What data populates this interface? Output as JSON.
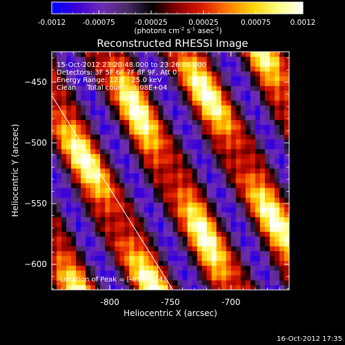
{
  "chart_data": {
    "type": "heatmap",
    "title": "Reconstructed RHESSI Image",
    "xlabel": "Heliocentric X (arcsec)",
    "ylabel": "Heliocentric Y (arcsec)",
    "xlim": [
      -848,
      -652
    ],
    "ylim": [
      -621,
      -425
    ],
    "x_ticks": [
      -800,
      -750,
      -700
    ],
    "x_tick_labels": [
      "-800",
      "-750",
      "-700"
    ],
    "y_ticks": [
      -450,
      -500,
      -550,
      -600
    ],
    "y_tick_labels": [
      "−450",
      "−500",
      "−550",
      "−600"
    ],
    "grid": false,
    "info_lines": [
      "15-Oct-2012 23:20:48.000 to 23:26:06.000",
      "Detectors: 3F 5F 6F 7F 8F 9F, Att 0",
      "Energy Range: 12.0 - 25.0 keV",
      "Clean     Total counts: 1.08E+04"
    ],
    "peak_label": "Location of Peak = [-858,-534]",
    "colorbar": {
      "range": [
        -0.0012,
        0.0012
      ],
      "ticks": [
        -0.0012,
        -0.00075,
        -0.00025,
        0.00025,
        0.00075,
        0.0012
      ],
      "tick_labels": [
        "-0.0012",
        "-0.00075",
        "-0.00025",
        "0.00025",
        "0.00075",
        "0.0012"
      ],
      "unit_main": "(photons cm",
      "unit_sup1": "-2",
      "unit_mid1": " s",
      "unit_sup2": "-1",
      "unit_mid2": " asec",
      "unit_sup3": "-2",
      "unit_end": ")",
      "stops": [
        "#0000ff",
        "#3a00d8",
        "#6e2cb4",
        "#4a2a66",
        "#000000",
        "#8a0000",
        "#dd1a00",
        "#ff7a00",
        "#ffd000",
        "#ffff80",
        "#ffffff"
      ]
    },
    "image_model": {
      "cell_arcsec": 4,
      "stripe_direction": [
        0.707,
        0.383
      ],
      "stripe_period": 46,
      "stripe_phase": 0.15,
      "along_period": 95,
      "along_phase": 0.8,
      "amplitude": 0.0012
    },
    "limb_line": {
      "x": [
        -848,
        -748
      ],
      "y": [
        -461,
        -621
      ]
    }
  },
  "footer": {
    "timestamp": "16-Oct-2012 17:35"
  }
}
